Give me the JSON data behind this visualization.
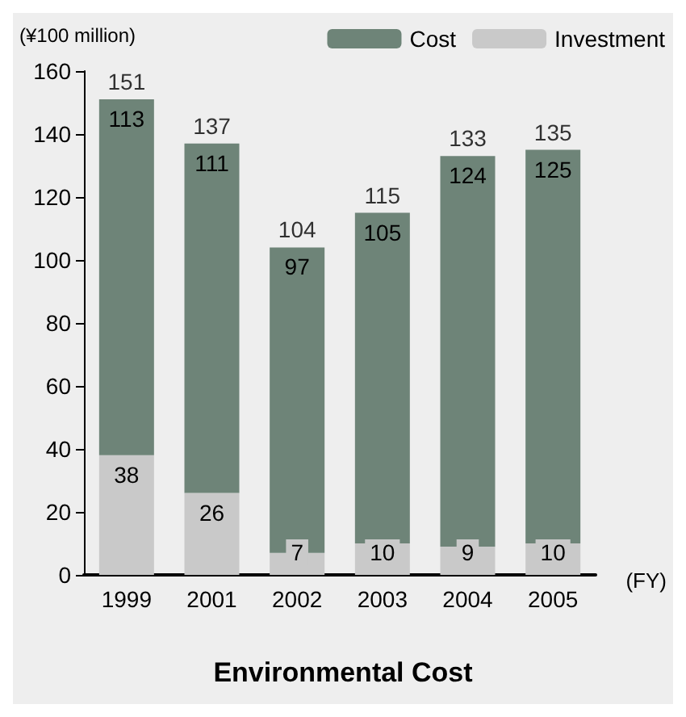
{
  "chart_data": {
    "type": "bar",
    "title": "Environmental Cost",
    "ylabel": "(¥100 million)",
    "xlabel": "(FY)",
    "categories": [
      "1999",
      "2001",
      "2002",
      "2003",
      "2004",
      "2005"
    ],
    "stacked": true,
    "series": [
      {
        "name": "Investment",
        "color": "#c9c9c9",
        "values": [
          38,
          26,
          7,
          10,
          9,
          10
        ]
      },
      {
        "name": "Cost",
        "color": "#6e8478",
        "values": [
          113,
          111,
          97,
          105,
          124,
          125
        ]
      }
    ],
    "totals": [
      "151",
      "137",
      "104",
      "115",
      "133",
      "135"
    ],
    "ylim": [
      0,
      160
    ],
    "yticks": [
      0,
      20,
      40,
      60,
      80,
      100,
      120,
      140,
      160
    ],
    "data_labels": true,
    "grid": false,
    "legend": "top right"
  }
}
